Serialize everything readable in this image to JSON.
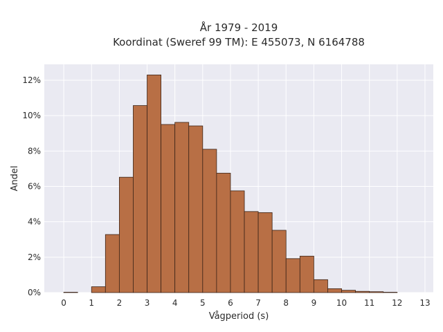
{
  "chart_data": {
    "type": "bar",
    "title": "År 1979 - 2019",
    "subtitle": "Koordinat (Sweref 99 TM): E 455073, N 6164788",
    "xlabel": "Vågperiod (s)",
    "ylabel": "Andel",
    "x_ticks": [
      "0",
      "1",
      "2",
      "3",
      "4",
      "5",
      "6",
      "7",
      "8",
      "9",
      "10",
      "11",
      "12",
      "13"
    ],
    "y_ticks": [
      "0%",
      "2%",
      "4%",
      "6%",
      "8%",
      "10%",
      "12%"
    ],
    "xlim": [
      -0.7,
      13.3
    ],
    "ylim": [
      0,
      12.9
    ],
    "grid": true,
    "bin_width": 0.5,
    "bins": [
      {
        "start": 0.0,
        "value": 0.02
      },
      {
        "start": 0.5,
        "value": 0.0
      },
      {
        "start": 1.0,
        "value": 0.33
      },
      {
        "start": 1.5,
        "value": 3.28
      },
      {
        "start": 2.0,
        "value": 6.52
      },
      {
        "start": 2.5,
        "value": 10.57
      },
      {
        "start": 3.0,
        "value": 12.3
      },
      {
        "start": 3.5,
        "value": 9.5
      },
      {
        "start": 4.0,
        "value": 9.62
      },
      {
        "start": 4.5,
        "value": 9.42
      },
      {
        "start": 5.0,
        "value": 8.1
      },
      {
        "start": 5.5,
        "value": 6.75
      },
      {
        "start": 6.0,
        "value": 5.75
      },
      {
        "start": 6.5,
        "value": 4.58
      },
      {
        "start": 7.0,
        "value": 4.52
      },
      {
        "start": 7.5,
        "value": 3.52
      },
      {
        "start": 8.0,
        "value": 1.92
      },
      {
        "start": 8.5,
        "value": 2.06
      },
      {
        "start": 9.0,
        "value": 0.73
      },
      {
        "start": 9.5,
        "value": 0.22
      },
      {
        "start": 10.0,
        "value": 0.13
      },
      {
        "start": 10.5,
        "value": 0.07
      },
      {
        "start": 11.0,
        "value": 0.05
      },
      {
        "start": 11.5,
        "value": 0.02
      },
      {
        "start": 12.0,
        "value": 0.0
      },
      {
        "start": 12.5,
        "value": 0.0
      }
    ],
    "colors": {
      "bar_fill": "#b86f45",
      "bar_edge": "#3b2418",
      "plot_bg": "#eaeaf2",
      "grid": "#ffffff"
    }
  }
}
